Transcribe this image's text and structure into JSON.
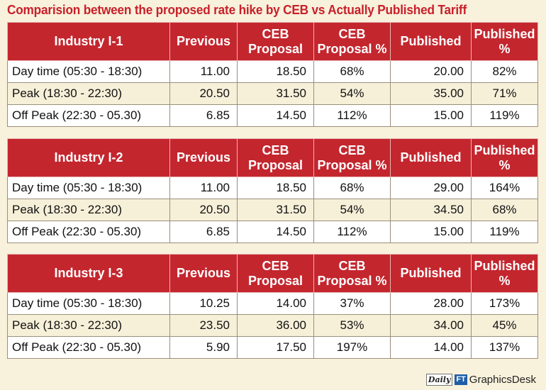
{
  "title": "Comparision between the proposed rate hike by CEB vs Actually Published Tariff",
  "chart_data": {
    "type": "table",
    "columns": [
      "Previous",
      "CEB Proposal",
      "CEB Proposal %",
      "Published",
      "Published %"
    ],
    "tables": [
      {
        "name": "Industry I-1",
        "rows": [
          {
            "label": "Day time (05:30 - 18:30)",
            "previous": "11.00",
            "ceb_proposal": "18.50",
            "ceb_proposal_pct": "68%",
            "published": "20.00",
            "published_pct": "82%"
          },
          {
            "label": "Peak (18:30 - 22:30)",
            "previous": "20.50",
            "ceb_proposal": "31.50",
            "ceb_proposal_pct": "54%",
            "published": "35.00",
            "published_pct": "71%"
          },
          {
            "label": "Off Peak (22:30 - 05.30)",
            "previous": "6.85",
            "ceb_proposal": "14.50",
            "ceb_proposal_pct": "112%",
            "published": "15.00",
            "published_pct": "119%"
          }
        ]
      },
      {
        "name": "Industry I-2",
        "rows": [
          {
            "label": "Day time (05:30 - 18:30)",
            "previous": "11.00",
            "ceb_proposal": "18.50",
            "ceb_proposal_pct": "68%",
            "published": "29.00",
            "published_pct": "164%"
          },
          {
            "label": "Peak (18:30 - 22:30)",
            "previous": "20.50",
            "ceb_proposal": "31.50",
            "ceb_proposal_pct": "54%",
            "published": "34.50",
            "published_pct": "68%"
          },
          {
            "label": "Off Peak (22:30 - 05.30)",
            "previous": "6.85",
            "ceb_proposal": "14.50",
            "ceb_proposal_pct": "112%",
            "published": "15.00",
            "published_pct": "119%"
          }
        ]
      },
      {
        "name": "Industry I-3",
        "rows": [
          {
            "label": "Day time (05:30 - 18:30)",
            "previous": "10.25",
            "ceb_proposal": "14.00",
            "ceb_proposal_pct": "37%",
            "published": "28.00",
            "published_pct": "173%"
          },
          {
            "label": "Peak (18:30 - 22:30)",
            "previous": "23.50",
            "ceb_proposal": "36.00",
            "ceb_proposal_pct": "53%",
            "published": "34.00",
            "published_pct": "45%"
          },
          {
            "label": "Off Peak (22:30 - 05.30)",
            "previous": "5.90",
            "ceb_proposal": "17.50",
            "ceb_proposal_pct": "197%",
            "published": "14.00",
            "published_pct": "137%"
          }
        ]
      }
    ]
  },
  "headers": {
    "previous": "Previous",
    "ceb_line1": "CEB",
    "ceb_line2": "Proposal",
    "cebpct_line1": "CEB",
    "cebpct_line2": "Proposal %",
    "published": "Published",
    "pubpct_line1": "Published",
    "pubpct_line2": "%"
  },
  "footer": {
    "logo_daily": "Daily",
    "logo_ft": "FT",
    "logo_desk": "GraphicsDesk"
  }
}
